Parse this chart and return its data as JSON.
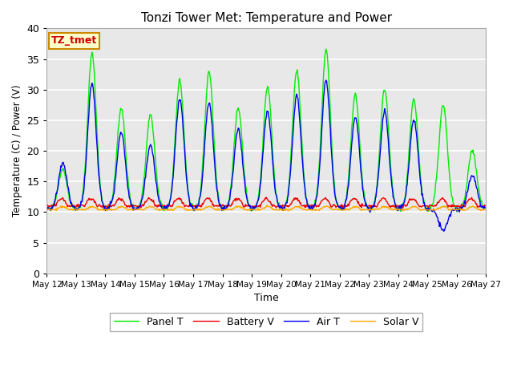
{
  "title": "Tonzi Tower Met: Temperature and Power",
  "xlabel": "Time",
  "ylabel": "Temperature (C) / Power (V)",
  "ylim": [
    0,
    40
  ],
  "yticks": [
    0,
    5,
    10,
    15,
    20,
    25,
    30,
    35,
    40
  ],
  "plot_bg_color": "#e8e8e8",
  "fig_bg_color": "#ffffff",
  "grid_color": "#ffffff",
  "annotation_text": "TZ_tmet",
  "annotation_color": "#cc0000",
  "annotation_bg": "#ffffcc",
  "annotation_border": "#cc8800",
  "legend_entries": [
    "Panel T",
    "Battery V",
    "Air T",
    "Solar V"
  ],
  "line_colors": {
    "panel_t": "#00ee00",
    "battery_v": "#ee0000",
    "air_t": "#0000ee",
    "solar_v": "#ffaa00"
  },
  "line_width": 1.0,
  "x_tick_labels": [
    "May 12",
    "May 13",
    "May 14",
    "May 15",
    "May 16",
    "May 17",
    "May 18",
    "May 19",
    "May 20",
    "May 21",
    "May 22",
    "May 23",
    "May 24",
    "May 25",
    "May 26",
    "May 27"
  ],
  "n_days": 15,
  "pts_per_day": 48,
  "panel_day_peaks": [
    17,
    36,
    27,
    26,
    31.5,
    33,
    27,
    30.5,
    33,
    36.5,
    29,
    30,
    28.5,
    27.5,
    20
  ],
  "air_day_peaks": [
    18,
    31,
    23,
    21,
    28.5,
    28,
    23.5,
    26.5,
    29,
    31.5,
    25.5,
    26.5,
    25,
    7,
    16
  ],
  "base_temp": 10.5,
  "battery_base": 11.0,
  "battery_amp": 1.2,
  "solar_base": 10.4,
  "solar_amp": 0.5
}
